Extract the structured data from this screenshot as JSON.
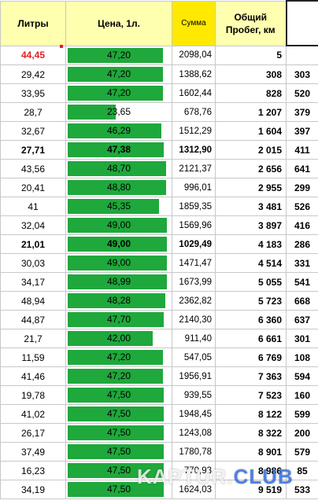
{
  "header": {
    "liters": "Литры",
    "price": "Цена, 1л.",
    "sum": "Сумма",
    "mileage_line1": "Общий",
    "mileage_line2": "Пробег, км",
    "extra": ""
  },
  "price_scale": {
    "min": 0,
    "max": 49.0
  },
  "rows": [
    {
      "liters": "44,45",
      "price": "47,20",
      "price_value": 47.2,
      "sum": "2098,04",
      "mileage": "5",
      "distance": "",
      "style": "red"
    },
    {
      "liters": "29,42",
      "price": "47,20",
      "price_value": 47.2,
      "sum": "1388,62",
      "mileage": "308",
      "distance": "303",
      "style": ""
    },
    {
      "liters": "33,95",
      "price": "47,20",
      "price_value": 47.2,
      "sum": "1602,44",
      "mileage": "828",
      "distance": "520",
      "style": ""
    },
    {
      "liters": "28,7",
      "price": "23,65",
      "price_value": 23.65,
      "sum": "678,76",
      "mileage": "1 207",
      "distance": "379",
      "style": ""
    },
    {
      "liters": "32,67",
      "price": "46,29",
      "price_value": 46.29,
      "sum": "1512,29",
      "mileage": "1 604",
      "distance": "397",
      "style": ""
    },
    {
      "liters": "27,71",
      "price": "47,38",
      "price_value": 47.38,
      "sum": "1312,90",
      "mileage": "2 015",
      "distance": "411",
      "style": "bold"
    },
    {
      "liters": "43,56",
      "price": "48,70",
      "price_value": 48.7,
      "sum": "2121,37",
      "mileage": "2 656",
      "distance": "641",
      "style": ""
    },
    {
      "liters": "20,41",
      "price": "48,80",
      "price_value": 48.8,
      "sum": "996,01",
      "mileage": "2 955",
      "distance": "299",
      "style": ""
    },
    {
      "liters": "41",
      "price": "45,35",
      "price_value": 45.35,
      "sum": "1859,35",
      "mileage": "3 481",
      "distance": "526",
      "style": ""
    },
    {
      "liters": "32,04",
      "price": "49,00",
      "price_value": 49.0,
      "sum": "1569,96",
      "mileage": "3 897",
      "distance": "416",
      "style": ""
    },
    {
      "liters": "21,01",
      "price": "49,00",
      "price_value": 49.0,
      "sum": "1029,49",
      "mileage": "4 183",
      "distance": "286",
      "style": "bold"
    },
    {
      "liters": "30,03",
      "price": "49,00",
      "price_value": 49.0,
      "sum": "1471,47",
      "mileage": "4 514",
      "distance": "331",
      "style": ""
    },
    {
      "liters": "34,17",
      "price": "48,99",
      "price_value": 48.99,
      "sum": "1673,99",
      "mileage": "5 055",
      "distance": "541",
      "style": ""
    },
    {
      "liters": "48,94",
      "price": "48,28",
      "price_value": 48.28,
      "sum": "2362,82",
      "mileage": "5 723",
      "distance": "668",
      "style": ""
    },
    {
      "liters": "44,87",
      "price": "47,70",
      "price_value": 47.7,
      "sum": "2140,30",
      "mileage": "6 360",
      "distance": "637",
      "style": ""
    },
    {
      "liters": "21,7",
      "price": "42,00",
      "price_value": 42.0,
      "sum": "911,40",
      "mileage": "6 661",
      "distance": "301",
      "style": ""
    },
    {
      "liters": "11,59",
      "price": "47,20",
      "price_value": 47.2,
      "sum": "547,05",
      "mileage": "6 769",
      "distance": "108",
      "style": ""
    },
    {
      "liters": "41,46",
      "price": "47,20",
      "price_value": 47.2,
      "sum": "1956,91",
      "mileage": "7 363",
      "distance": "594",
      "style": ""
    },
    {
      "liters": "19,78",
      "price": "47,50",
      "price_value": 47.5,
      "sum": "939,55",
      "mileage": "7 523",
      "distance": "160",
      "style": ""
    },
    {
      "liters": "41,02",
      "price": "47,50",
      "price_value": 47.5,
      "sum": "1948,45",
      "mileage": "8 122",
      "distance": "599",
      "style": ""
    },
    {
      "liters": "26,17",
      "price": "47,50",
      "price_value": 47.5,
      "sum": "1243,08",
      "mileage": "8 322",
      "distance": "200",
      "style": ""
    },
    {
      "liters": "37,49",
      "price": "47,50",
      "price_value": 47.5,
      "sum": "1780,78",
      "mileage": "8 901",
      "distance": "579",
      "style": ""
    },
    {
      "liters": "16,23",
      "price": "47,50",
      "price_value": 47.5,
      "sum": "770,93",
      "mileage": "8 986",
      "distance": "85",
      "style": ""
    },
    {
      "liters": "34,19",
      "price": "47,50",
      "price_value": 47.5,
      "sum": "1624,03",
      "mileage": "9 519",
      "distance": "533",
      "style": ""
    }
  ],
  "watermark": {
    "main": "KAPTUR.",
    "accent": "CLUB"
  },
  "colors": {
    "bar": "#1fa83c",
    "header": "#ffffb0",
    "sum_header": "#ffe900",
    "highlight": "#e52020"
  }
}
